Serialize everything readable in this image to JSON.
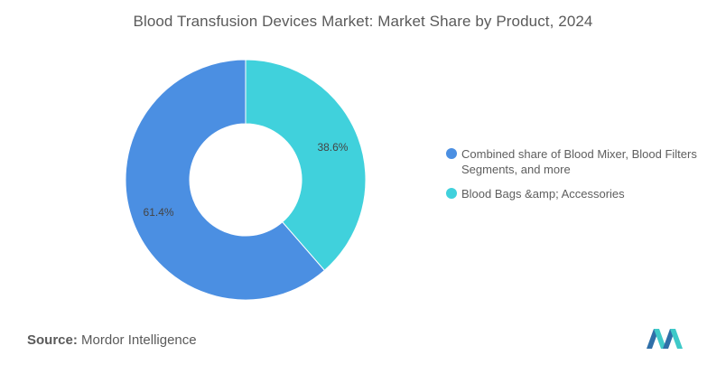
{
  "chart_data": {
    "type": "pie",
    "variant": "donut",
    "title": "Blood Transfusion Devices Market: Market Share by Product, 2024",
    "slices": [
      {
        "label": "Blood Bags &amp; Accessories",
        "value": 38.6,
        "display": "38.6%",
        "color": "#40d1dc"
      },
      {
        "label": "Combined share of Blood Mixer, Blood Filters Segments, and more",
        "value": 61.4,
        "display": "61.4%",
        "color": "#4b8fe2"
      }
    ],
    "legend_position": "right",
    "legend_order": [
      1,
      0
    ]
  },
  "footer": {
    "source_label": "Source:",
    "source_value": "Mordor Intelligence"
  },
  "brand": {
    "logo_icon": "mordor-intelligence-logo-icon",
    "colors": [
      "#2f6fa8",
      "#3ec9c8"
    ]
  }
}
